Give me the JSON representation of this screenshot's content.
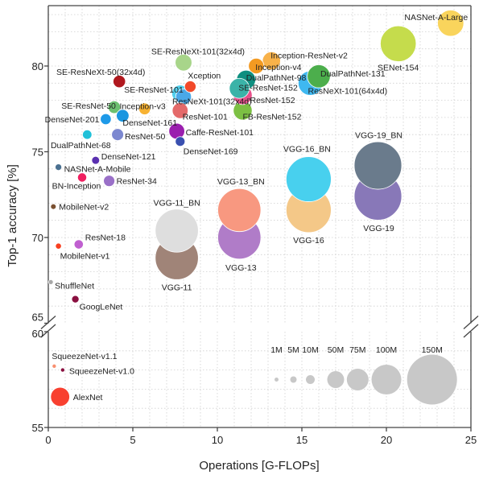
{
  "chart_data": {
    "type": "scatter",
    "xlabel": "Operations [G-FLOPs]",
    "ylabel": "Top-1 accuracy [%]",
    "xlim": [
      0,
      25
    ],
    "ylim_upper": [
      65,
      83.5
    ],
    "ylim_lower": [
      55,
      60
    ],
    "broken_y_axis": true,
    "grid": true,
    "x_ticks": [
      "0",
      "5",
      "10",
      "15",
      "20",
      "25"
    ],
    "y_ticks_upper": [
      "65",
      "70",
      "75",
      "80"
    ],
    "y_ticks_lower": [
      "55",
      "60"
    ],
    "size_legend": {
      "placement": "bottom-right",
      "values_millions": [
        1,
        5,
        10,
        50,
        75,
        100,
        150
      ],
      "labels": [
        "1M",
        "5M",
        "10M",
        "50M",
        "75M",
        "100M",
        "150M"
      ],
      "color": "#c8c8c8"
    },
    "points": [
      {
        "name": "VGG-11",
        "x": 7.6,
        "y": 68.8,
        "params_m": 133,
        "color": "#a08478"
      },
      {
        "name": "VGG-11_BN",
        "x": 7.6,
        "y": 70.4,
        "params_m": 133,
        "color": "#dedede"
      },
      {
        "name": "VGG-13",
        "x": 11.3,
        "y": 70.0,
        "params_m": 133,
        "color": "#b07cc8"
      },
      {
        "name": "VGG-13_BN",
        "x": 11.3,
        "y": 71.6,
        "params_m": 133,
        "color": "#f89880"
      },
      {
        "name": "VGG-16",
        "x": 15.4,
        "y": 71.6,
        "params_m": 138,
        "color": "#f4c888"
      },
      {
        "name": "VGG-16_BN",
        "x": 15.4,
        "y": 73.4,
        "params_m": 138,
        "color": "#48d0ee"
      },
      {
        "name": "VGG-19",
        "x": 19.5,
        "y": 72.4,
        "params_m": 144,
        "color": "#8878b8"
      },
      {
        "name": "VGG-19_BN",
        "x": 19.5,
        "y": 74.2,
        "params_m": 144,
        "color": "#6a7b8c"
      },
      {
        "name": "AlexNet",
        "x": 0.7,
        "y": 56.6,
        "params_m": 61,
        "color": "#f84030"
      },
      {
        "name": "SENet-154",
        "x": 20.7,
        "y": 81.3,
        "params_m": 115,
        "color": "#c5dc4c"
      },
      {
        "name": "NASNet-A-Large",
        "x": 23.8,
        "y": 82.5,
        "params_m": 89,
        "color": "#f9d45c"
      },
      {
        "name": "ResNeXt-101(64x4d)",
        "x": 15.5,
        "y": 79.0,
        "params_m": 83,
        "color": "#3fb8f0"
      },
      {
        "name": "DualPathNet-131",
        "x": 16.0,
        "y": 79.4,
        "params_m": 79,
        "color": "#4cae4c"
      },
      {
        "name": "Inception-ResNet-v2",
        "x": 13.2,
        "y": 80.3,
        "params_m": 56,
        "color": "#f8b24a"
      },
      {
        "name": "Inception-v4",
        "x": 12.3,
        "y": 80.0,
        "params_m": 43,
        "color": "#f39a22"
      },
      {
        "name": "DualPathNet-98",
        "x": 11.7,
        "y": 79.2,
        "params_m": 61,
        "color": "#0f8f80"
      },
      {
        "name": "FB-ResNet-152",
        "x": 11.5,
        "y": 77.4,
        "params_m": 60,
        "color": "#7cc043"
      },
      {
        "name": "ResNet-152",
        "x": 11.5,
        "y": 78.3,
        "params_m": 60,
        "color": "#e8508a"
      },
      {
        "name": "SE-ResNet-152",
        "x": 11.3,
        "y": 78.7,
        "params_m": 66,
        "color": "#3bb3a8"
      },
      {
        "name": "SE-ResNeXt-101(32x4d)",
        "x": 8.0,
        "y": 80.2,
        "params_m": 49,
        "color": "#a8d58a"
      },
      {
        "name": "SE-ResNet-101",
        "x": 7.8,
        "y": 78.4,
        "params_m": 49,
        "color": "#52d0ee"
      },
      {
        "name": "ResNeXt-101(32x4d)",
        "x": 8.0,
        "y": 78.2,
        "params_m": 44,
        "color": "#4aa8e8"
      },
      {
        "name": "ResNet-101",
        "x": 7.8,
        "y": 77.4,
        "params_m": 44.5,
        "color": "#e46a6a"
      },
      {
        "name": "Caffe-ResNet-101",
        "x": 7.6,
        "y": 76.2,
        "params_m": 44.5,
        "color": "#9a1fae"
      },
      {
        "name": "Xception",
        "x": 8.4,
        "y": 78.8,
        "params_m": 22.9,
        "color": "#f24a2a"
      },
      {
        "name": "SE-ResNeXt-50(32x4d)",
        "x": 4.2,
        "y": 79.1,
        "params_m": 27.6,
        "color": "#b0181e"
      },
      {
        "name": "SE-ResNet-50",
        "x": 3.9,
        "y": 77.6,
        "params_m": 28,
        "color": "#6cc070"
      },
      {
        "name": "DenseNet-161",
        "x": 4.4,
        "y": 77.1,
        "params_m": 28.7,
        "color": "#1a96e0"
      },
      {
        "name": "Inception-v3",
        "x": 5.7,
        "y": 77.5,
        "params_m": 23.8,
        "color": "#f7b232"
      },
      {
        "name": "DenseNet-201",
        "x": 3.4,
        "y": 76.9,
        "params_m": 20,
        "color": "#1e9ae8"
      },
      {
        "name": "ResNet-50",
        "x": 4.1,
        "y": 76.0,
        "params_m": 25.6,
        "color": "#7c88d0"
      },
      {
        "name": "DenseNet-169",
        "x": 7.8,
        "y": 75.6,
        "params_m": 14,
        "color": "#3a50b0"
      },
      {
        "name": "DualPathNet-68",
        "x": 2.3,
        "y": 76.0,
        "params_m": 12.6,
        "color": "#20c0d8"
      },
      {
        "name": "DenseNet-121",
        "x": 2.8,
        "y": 74.5,
        "params_m": 8,
        "color": "#5a30b0"
      },
      {
        "name": "NASNet-A-Mobile",
        "x": 0.6,
        "y": 74.1,
        "params_m": 5.3,
        "color": "#4a7090"
      },
      {
        "name": "BN-Inception",
        "x": 2.0,
        "y": 73.5,
        "params_m": 11.3,
        "color": "#f02060"
      },
      {
        "name": "ResNet-34",
        "x": 3.6,
        "y": 73.3,
        "params_m": 21.8,
        "color": "#9a70c8"
      },
      {
        "name": "MobileNet-v2",
        "x": 0.3,
        "y": 71.8,
        "params_m": 3.5,
        "color": "#7a5030"
      },
      {
        "name": "ResNet-18",
        "x": 1.8,
        "y": 69.6,
        "params_m": 11.7,
        "color": "#c060d0"
      },
      {
        "name": "MobileNet-v1",
        "x": 0.6,
        "y": 69.5,
        "params_m": 4.2,
        "color": "#f84020"
      },
      {
        "name": "ShuffleNet",
        "x": 0.15,
        "y": 67.4,
        "params_m": 2.3,
        "color": "#a8a8a8"
      },
      {
        "name": "GoogLeNet",
        "x": 1.6,
        "y": 66.4,
        "params_m": 7,
        "color": "#8a1040"
      },
      {
        "name": "SqueezeNet-v1.1",
        "x": 0.35,
        "y": 58.2,
        "params_m": 1.2,
        "color": "#f89070"
      },
      {
        "name": "SqueezeNet-v1.0",
        "x": 0.85,
        "y": 58.0,
        "params_m": 1.25,
        "color": "#8a1040"
      }
    ]
  }
}
